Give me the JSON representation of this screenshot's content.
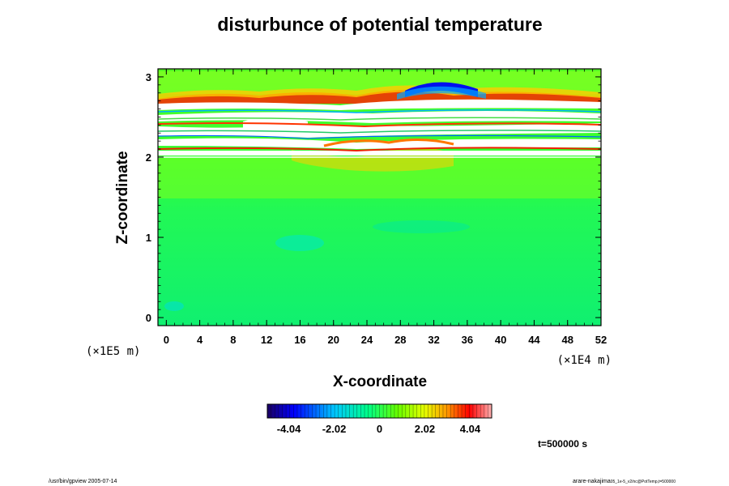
{
  "chart_data": {
    "type": "heatmap",
    "title": "disturbunce of potential temperature",
    "xlabel": "X-coordinate",
    "ylabel": "Z-coordinate",
    "x_unit": "(×1E4 m)",
    "y_unit": "(×1E5 m)",
    "xlim": [
      -1,
      52
    ],
    "ylim": [
      -0.1,
      3.1
    ],
    "x_ticks": [
      "0",
      "4",
      "8",
      "12",
      "16",
      "20",
      "24",
      "28",
      "32",
      "36",
      "40",
      "44",
      "48",
      "52"
    ],
    "y_ticks": [
      "0",
      "1",
      "2",
      "3"
    ],
    "colorbar": {
      "range": [
        -5.0,
        5.0
      ],
      "tick_labels": [
        "-4.04",
        "-2.02",
        "0",
        "2.02",
        "4.04"
      ],
      "tick_values": [
        -4.04,
        -2.02,
        0,
        2.02,
        4.04
      ]
    },
    "time_label": "t=500000 s",
    "footer_left": "/usr/bin/gpview 2005-07-14",
    "footer_right": "arare-nakajima",
    "footer_right_sub": "05_1e-5_v2/nc@PotTemp,t=500000"
  }
}
